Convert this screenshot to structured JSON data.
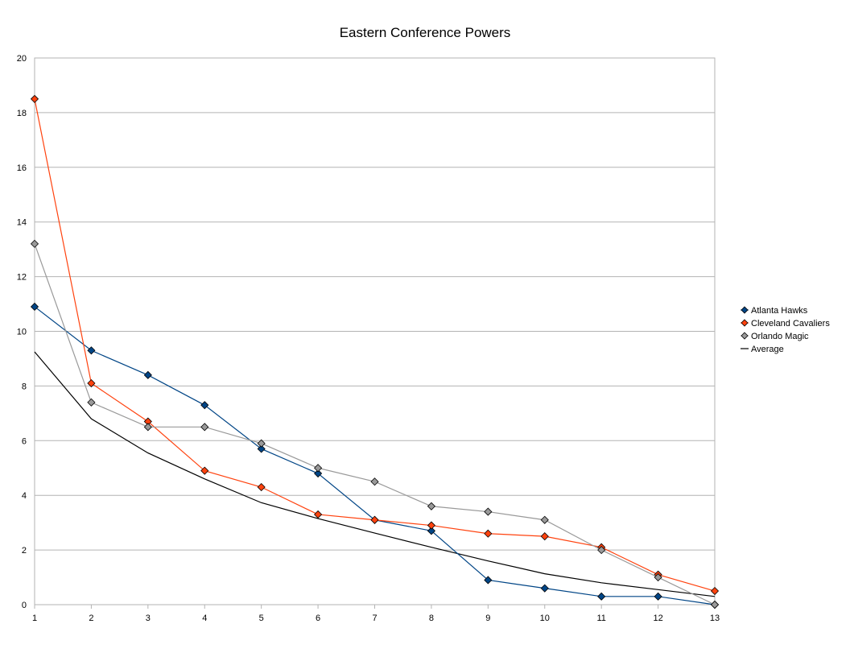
{
  "chart_data": {
    "type": "line",
    "title": "Eastern Conference Powers",
    "xlabel": "",
    "ylabel": "",
    "x": [
      1,
      2,
      3,
      4,
      5,
      6,
      7,
      8,
      9,
      10,
      11,
      12,
      13
    ],
    "ylim": [
      0,
      20
    ],
    "yticks": [
      0,
      2,
      4,
      6,
      8,
      10,
      12,
      14,
      16,
      18,
      20
    ],
    "grid": true,
    "legend_position": "right",
    "series": [
      {
        "name": "Atlanta Hawks",
        "color": "#004586",
        "marker": "diamond",
        "values": [
          10.9,
          9.3,
          8.4,
          7.3,
          5.7,
          4.8,
          3.1,
          2.7,
          0.9,
          0.6,
          0.3,
          0.3,
          0.0
        ]
      },
      {
        "name": "Cleveland Cavaliers",
        "color": "#ff420e",
        "marker": "diamond",
        "values": [
          18.5,
          8.1,
          6.7,
          4.9,
          4.3,
          3.3,
          3.1,
          2.9,
          2.6,
          2.5,
          2.1,
          1.1,
          0.5
        ]
      },
      {
        "name": "Orlando Magic",
        "color": "#999999",
        "marker": "diamond",
        "values": [
          13.2,
          7.4,
          6.5,
          6.5,
          5.9,
          5.0,
          4.5,
          3.6,
          3.4,
          3.1,
          2.0,
          1.0,
          0.0
        ]
      },
      {
        "name": "Average",
        "color": "#000000",
        "marker": "none",
        "values": [
          9.25,
          6.8,
          5.55,
          4.6,
          3.73,
          3.15,
          2.62,
          2.1,
          1.6,
          1.13,
          0.8,
          0.55,
          0.3
        ]
      }
    ]
  }
}
